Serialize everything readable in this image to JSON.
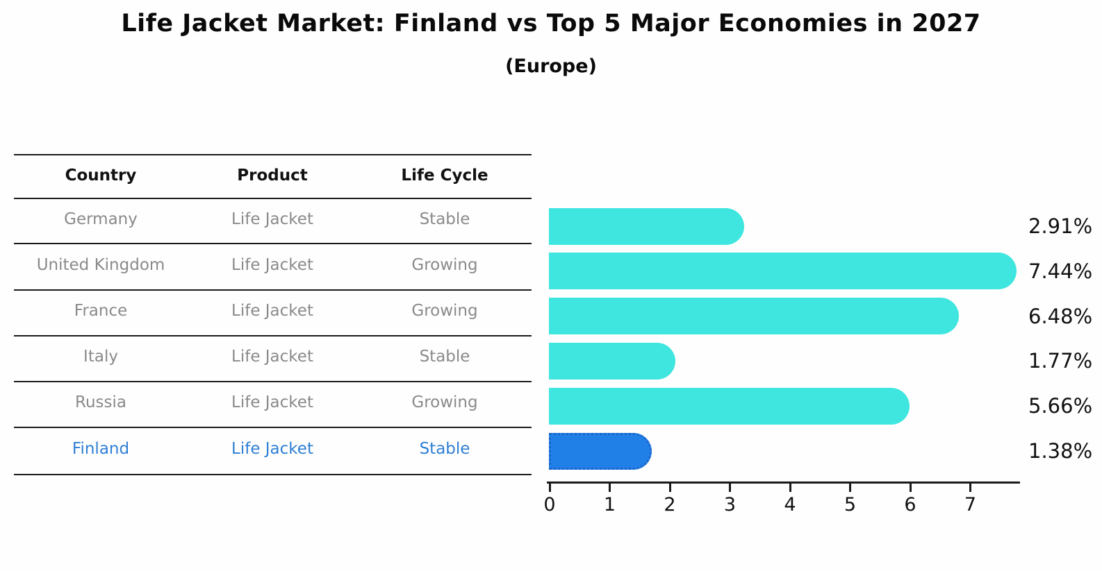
{
  "title": "Life Jacket Market: Finland vs Top 5 Major Economies in 2027",
  "subtitle": "(Europe)",
  "table": {
    "headers": [
      "Country",
      "Product",
      "Life Cycle"
    ],
    "rows": [
      {
        "country": "Germany",
        "product": "Life Jacket",
        "life_cycle": "Stable",
        "highlight": false
      },
      {
        "country": "United Kingdom",
        "product": "Life Jacket",
        "life_cycle": "Growing",
        "highlight": false
      },
      {
        "country": "France",
        "product": "Life Jacket",
        "life_cycle": "Growing",
        "highlight": false
      },
      {
        "country": "Italy",
        "product": "Life Jacket",
        "life_cycle": "Stable",
        "highlight": false
      },
      {
        "country": "Russia",
        "product": "Life Jacket",
        "life_cycle": "Growing",
        "highlight": false
      },
      {
        "country": "Finland",
        "product": "Life Jacket",
        "life_cycle": "Stable",
        "highlight": true
      }
    ]
  },
  "chart_data": {
    "type": "bar",
    "orientation": "horizontal",
    "title": "Life Jacket Market: Finland vs Top 5 Major Economies in 2027 (Europe)",
    "categories": [
      "Germany",
      "United Kingdom",
      "France",
      "Italy",
      "Russia",
      "Finland"
    ],
    "values": [
      2.91,
      7.44,
      6.48,
      1.77,
      5.66,
      1.38
    ],
    "value_labels": [
      "2.91%",
      "7.44%",
      "6.48%",
      "1.77%",
      "5.66%",
      "1.38%"
    ],
    "x_ticks": [
      0,
      1,
      2,
      3,
      4,
      5,
      6,
      7
    ],
    "xlim": [
      0,
      7.8
    ],
    "xlabel": "",
    "ylabel": "",
    "grid": false,
    "legend": false,
    "bar_color": "#3ee6df",
    "highlight_color": "#2180e8",
    "highlight_border": "dotted",
    "highlight_index": 5,
    "row_text_color": "#8a8a8a",
    "highlight_text_color": "#2e7fd4"
  }
}
